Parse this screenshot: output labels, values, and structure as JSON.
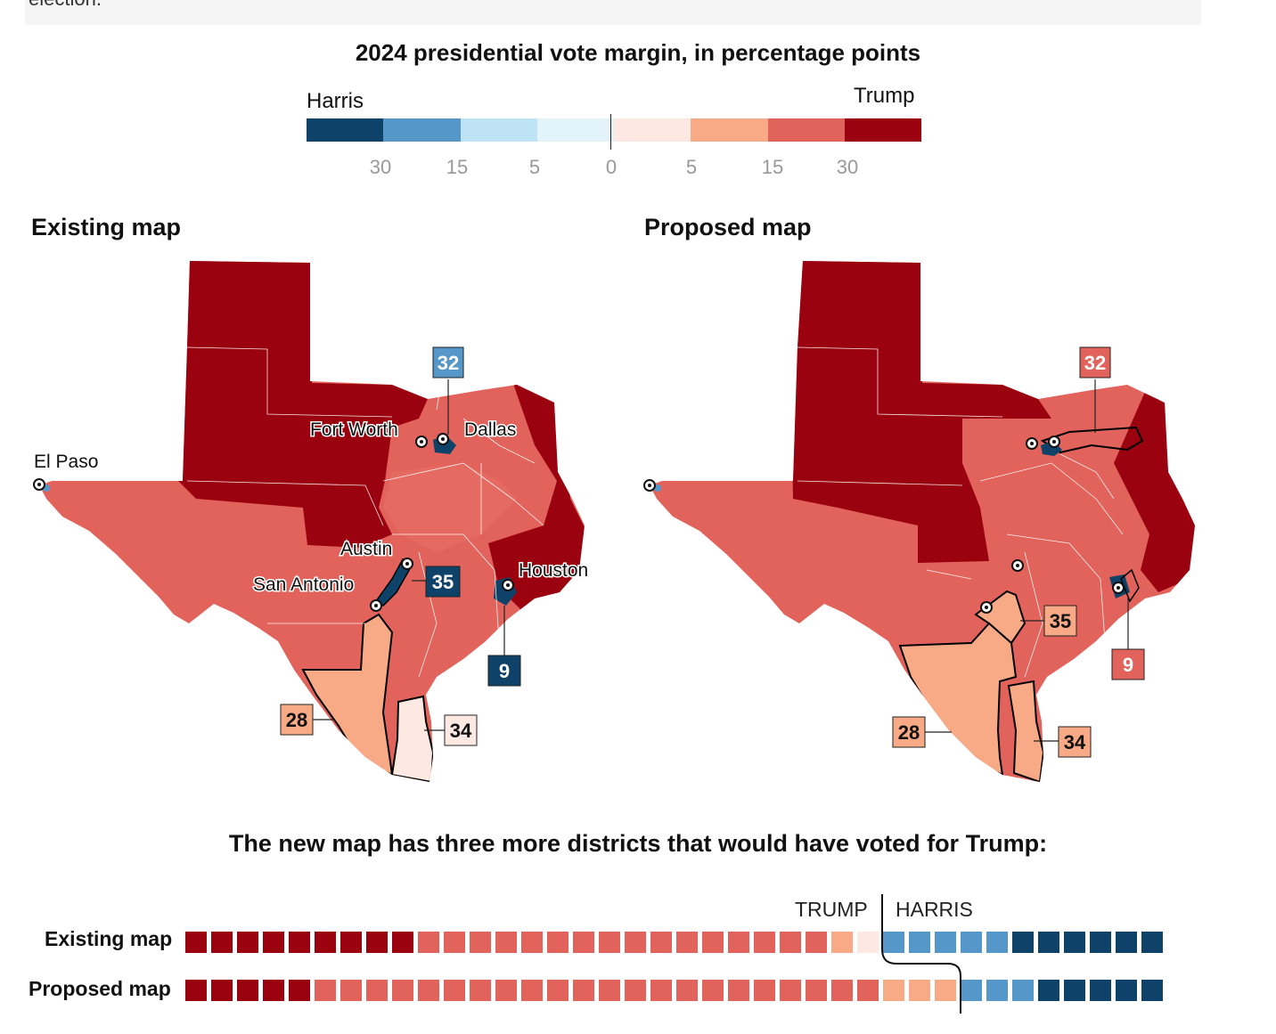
{
  "header_fragment": "election.",
  "legend": {
    "title": "2024 presidential vote margin, in percentage points",
    "left_label": "Harris",
    "right_label": "Trump",
    "colors": [
      "#0e4268",
      "#5597c8",
      "#bde3f5",
      "#e3f3fa",
      "#fde8e2",
      "#f8a985",
      "#e2635b",
      "#9a020f"
    ],
    "ticks": [
      "30",
      "15",
      "5",
      "0",
      "5",
      "15",
      "30"
    ]
  },
  "maps": {
    "existing": {
      "title": "Existing map",
      "cities": [
        "Fort Worth",
        "Dallas",
        "El Paso",
        "Austin",
        "San Antonio",
        "Houston"
      ],
      "callouts": [
        {
          "num": "32",
          "color": "#5597c8",
          "text_color": "#ffffff"
        },
        {
          "num": "35",
          "color": "#0e4268",
          "text_color": "#ffffff"
        },
        {
          "num": "9",
          "color": "#0e4268",
          "text_color": "#ffffff"
        },
        {
          "num": "28",
          "color": "#f8a985",
          "text_color": "#111111"
        },
        {
          "num": "34",
          "color": "#fde8e2",
          "text_color": "#111111"
        }
      ]
    },
    "proposed": {
      "title": "Proposed map",
      "callouts": [
        {
          "num": "32",
          "color": "#e2635b",
          "text_color": "#ffffff"
        },
        {
          "num": "35",
          "color": "#f8a985",
          "text_color": "#111111"
        },
        {
          "num": "9",
          "color": "#e2635b",
          "text_color": "#ffffff"
        },
        {
          "num": "28",
          "color": "#f8a985",
          "text_color": "#111111"
        },
        {
          "num": "34",
          "color": "#f8a985",
          "text_color": "#111111"
        }
      ]
    }
  },
  "summary": {
    "text": "The new map has three more districts that would have voted for Trump:",
    "trump_label": "TRUMP",
    "harris_label": "HARRIS",
    "rows": [
      {
        "label": "Existing map",
        "counts": {
          "dark_red": 9,
          "red": 16,
          "light_red": 1,
          "pale_red": 1,
          "light_blue": 5,
          "dark_blue": 6
        }
      },
      {
        "label": "Proposed map",
        "counts": {
          "dark_red": 5,
          "red": 22,
          "light_red": 3,
          "pale_red": 0,
          "light_blue": 3,
          "dark_blue": 5
        }
      }
    ]
  }
}
